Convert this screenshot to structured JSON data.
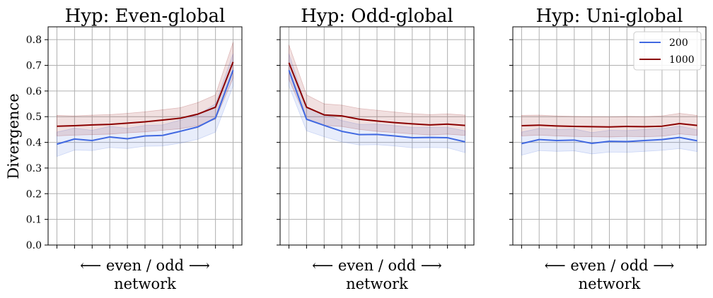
{
  "figure": {
    "ylabel": "Divergence"
  },
  "legend": {
    "placement": "top-right",
    "panel_index": 2,
    "entries": [
      {
        "label": "200",
        "color": "#4169e1"
      },
      {
        "label": "1000",
        "color": "#8b0000"
      }
    ]
  },
  "chart_data": [
    {
      "type": "line",
      "title": "Hyp: Even-global",
      "xlabel_line1": "⟵ even / odd ⟶",
      "xlabel_line2": "network",
      "ylabel": "Divergence",
      "ylim": [
        0,
        0.85
      ],
      "yticks": [
        0.0,
        0.1,
        0.2,
        0.3,
        0.4,
        0.5,
        0.6,
        0.7,
        0.8
      ],
      "x": [
        0,
        1,
        2,
        3,
        4,
        5,
        6,
        7,
        8,
        9,
        10
      ],
      "xlim": [
        -0.5,
        10.5
      ],
      "grid": true,
      "series": [
        {
          "name": "200",
          "color": "#4169e1",
          "values": [
            0.393,
            0.413,
            0.407,
            0.421,
            0.414,
            0.425,
            0.427,
            0.443,
            0.46,
            0.495,
            0.681
          ],
          "lower": [
            0.345,
            0.37,
            0.368,
            0.38,
            0.376,
            0.385,
            0.386,
            0.397,
            0.412,
            0.44,
            0.62
          ],
          "upper": [
            0.44,
            0.455,
            0.447,
            0.462,
            0.455,
            0.466,
            0.468,
            0.487,
            0.508,
            0.55,
            0.745
          ]
        },
        {
          "name": "1000",
          "color": "#8b0000",
          "values": [
            0.463,
            0.465,
            0.468,
            0.47,
            0.475,
            0.48,
            0.487,
            0.494,
            0.51,
            0.537,
            0.713
          ],
          "lower": [
            0.425,
            0.428,
            0.43,
            0.432,
            0.437,
            0.441,
            0.447,
            0.453,
            0.465,
            0.49,
            0.65
          ],
          "upper": [
            0.505,
            0.503,
            0.506,
            0.508,
            0.513,
            0.519,
            0.527,
            0.535,
            0.555,
            0.585,
            0.79
          ]
        }
      ]
    },
    {
      "type": "line",
      "title": "Hyp: Odd-global",
      "xlabel_line1": "⟵ even / odd ⟶",
      "xlabel_line2": "network",
      "ylim": [
        0,
        0.85
      ],
      "yticks": [
        0.0,
        0.1,
        0.2,
        0.3,
        0.4,
        0.5,
        0.6,
        0.7,
        0.8
      ],
      "x": [
        0,
        1,
        2,
        3,
        4,
        5,
        6,
        7,
        8,
        9,
        10
      ],
      "xlim": [
        -0.5,
        10.5
      ],
      "grid": true,
      "series": [
        {
          "name": "200",
          "color": "#4169e1",
          "values": [
            0.681,
            0.49,
            0.466,
            0.443,
            0.43,
            0.431,
            0.425,
            0.418,
            0.419,
            0.418,
            0.402
          ],
          "lower": [
            0.62,
            0.445,
            0.422,
            0.402,
            0.39,
            0.391,
            0.386,
            0.379,
            0.38,
            0.379,
            0.36
          ],
          "upper": [
            0.745,
            0.535,
            0.51,
            0.485,
            0.47,
            0.471,
            0.465,
            0.458,
            0.459,
            0.458,
            0.445
          ]
        },
        {
          "name": "1000",
          "color": "#8b0000",
          "values": [
            0.71,
            0.537,
            0.507,
            0.503,
            0.49,
            0.483,
            0.477,
            0.472,
            0.468,
            0.471,
            0.466
          ],
          "lower": [
            0.645,
            0.49,
            0.466,
            0.462,
            0.45,
            0.443,
            0.438,
            0.433,
            0.429,
            0.432,
            0.427
          ],
          "upper": [
            0.78,
            0.585,
            0.55,
            0.545,
            0.532,
            0.525,
            0.518,
            0.512,
            0.508,
            0.511,
            0.506
          ]
        }
      ]
    },
    {
      "type": "line",
      "title": "Hyp: Uni-global",
      "xlabel_line1": "⟵ even / odd ⟶",
      "xlabel_line2": "network",
      "ylim": [
        0,
        0.85
      ],
      "yticks": [
        0.0,
        0.1,
        0.2,
        0.3,
        0.4,
        0.5,
        0.6,
        0.7,
        0.8
      ],
      "x": [
        0,
        1,
        2,
        3,
        4,
        5,
        6,
        7,
        8,
        9,
        10
      ],
      "xlim": [
        -0.5,
        10.5
      ],
      "grid": true,
      "series": [
        {
          "name": "200",
          "color": "#4169e1",
          "values": [
            0.395,
            0.411,
            0.407,
            0.409,
            0.396,
            0.404,
            0.403,
            0.407,
            0.411,
            0.419,
            0.406
          ],
          "lower": [
            0.35,
            0.368,
            0.365,
            0.367,
            0.355,
            0.362,
            0.361,
            0.365,
            0.369,
            0.376,
            0.364
          ],
          "upper": [
            0.44,
            0.454,
            0.45,
            0.452,
            0.438,
            0.447,
            0.446,
            0.45,
            0.454,
            0.463,
            0.449
          ]
        },
        {
          "name": "1000",
          "color": "#8b0000",
          "values": [
            0.465,
            0.467,
            0.464,
            0.462,
            0.461,
            0.46,
            0.462,
            0.461,
            0.463,
            0.473,
            0.466
          ],
          "lower": [
            0.425,
            0.428,
            0.425,
            0.423,
            0.422,
            0.421,
            0.423,
            0.422,
            0.424,
            0.433,
            0.427
          ],
          "upper": [
            0.505,
            0.506,
            0.503,
            0.501,
            0.5,
            0.499,
            0.501,
            0.5,
            0.503,
            0.513,
            0.505
          ]
        }
      ]
    }
  ]
}
